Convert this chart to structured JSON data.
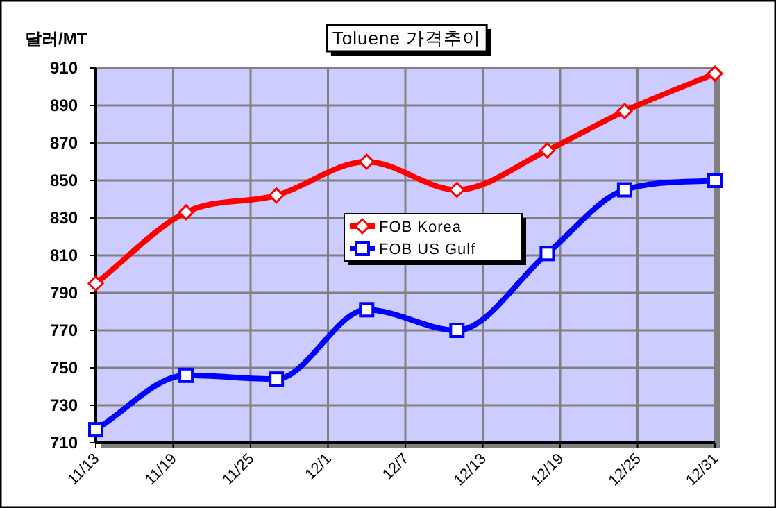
{
  "chart_data": {
    "type": "line",
    "title": "Toluene 가격추이",
    "ylabel": "달러/MT",
    "x": [
      "--11-13",
      "--11-20",
      "--11-27",
      "--12-04",
      "--12-11",
      "--12-18",
      "--12-24",
      "--12-31"
    ],
    "series": [
      {
        "name": "FOB Korea",
        "color": "#ff0000",
        "marker": "diamond",
        "values": [
          795,
          833,
          842,
          860,
          845,
          866,
          887,
          907
        ]
      },
      {
        "name": "FOB US Gulf",
        "color": "#0000ff",
        "marker": "square",
        "values": [
          717,
          746,
          744,
          781,
          770,
          811,
          845,
          850
        ]
      }
    ],
    "xlim": [
      "--11-13",
      "--12-31"
    ],
    "xticks": [
      {
        "value": "--11-13",
        "label": "11/13"
      },
      {
        "value": "--11-19",
        "label": "11/19"
      },
      {
        "value": "--11-25",
        "label": "11/25"
      },
      {
        "value": "--12-01",
        "label": "12/1"
      },
      {
        "value": "--12-07",
        "label": "12/7"
      },
      {
        "value": "--12-13",
        "label": "12/13"
      },
      {
        "value": "--12-19",
        "label": "12/19"
      },
      {
        "value": "--12-25",
        "label": "12/25"
      },
      {
        "value": "--12-31",
        "label": "12/31"
      }
    ],
    "ylim": [
      710,
      910
    ],
    "yticks": [
      710,
      730,
      750,
      770,
      790,
      810,
      830,
      850,
      870,
      890,
      910
    ],
    "grid": true,
    "legend": "center",
    "line_style": "solid"
  }
}
